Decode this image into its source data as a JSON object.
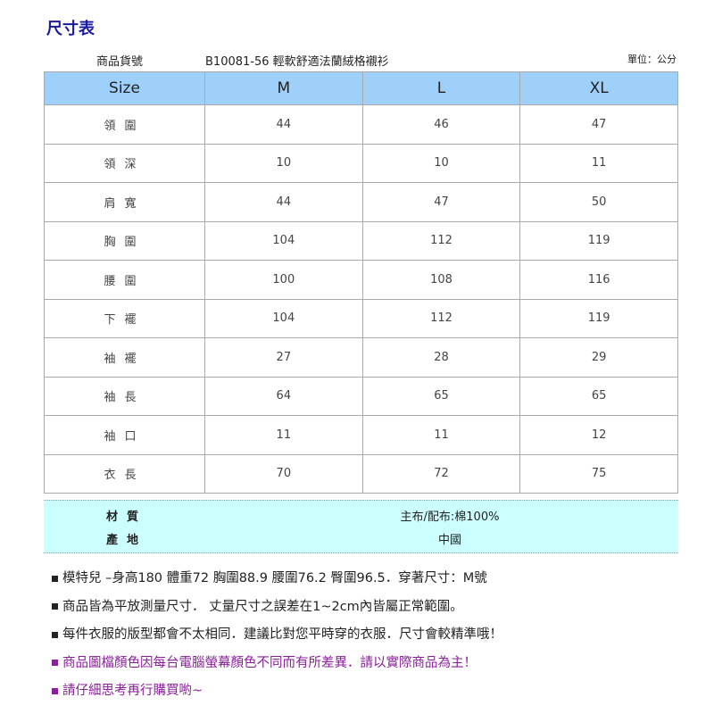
{
  "title": "尺寸表",
  "product_label": "商品貨號",
  "product_name": "B10081-56 輕軟舒適法蘭絨格襯衫",
  "unit": "單位：公分",
  "table": {
    "headers": [
      "Size",
      "M",
      "L",
      "XL"
    ],
    "rows": [
      {
        "label": "領圍",
        "values": [
          "44",
          "46",
          "47"
        ]
      },
      {
        "label": "領深",
        "values": [
          "10",
          "10",
          "11"
        ]
      },
      {
        "label": "肩寬",
        "values": [
          "44",
          "47",
          "50"
        ]
      },
      {
        "label": "胸圍",
        "values": [
          "104",
          "112",
          "119"
        ]
      },
      {
        "label": "腰圍",
        "values": [
          "100",
          "108",
          "116"
        ]
      },
      {
        "label": "下襬",
        "values": [
          "104",
          "112",
          "119"
        ]
      },
      {
        "label": "袖襬",
        "values": [
          "27",
          "28",
          "29"
        ]
      },
      {
        "label": "袖長",
        "values": [
          "64",
          "65",
          "65"
        ]
      },
      {
        "label": "袖口",
        "values": [
          "11",
          "11",
          "12"
        ]
      },
      {
        "label": "衣長",
        "values": [
          "70",
          "72",
          "75"
        ]
      }
    ]
  },
  "material": {
    "label": "材質",
    "value": "主布/配布:棉100%"
  },
  "origin": {
    "label": "產地",
    "value": "中國"
  },
  "notes": [
    {
      "text": "模特兒 –身高180 體重72 胸圍88.9 腰圍76.2 臀圍96.5．穿著尺寸：M號",
      "color": "#222222"
    },
    {
      "text": "商品皆為平放測量尺寸． 丈量尺寸之誤差在1~2cm內皆屬正常範圍。",
      "color": "#222222"
    },
    {
      "text": "每件衣服的版型都會不太相同．建議比對您平時穿的衣服．尺寸會較精準哦！",
      "color": "#222222"
    },
    {
      "text": "商品圖檔顏色因每台電腦螢幕顏色不同而有所差異．請以實際商品為主！",
      "color": "#8a1f9a"
    },
    {
      "text": "請仔細思考再行購買喲~",
      "color": "#8a1f9a"
    }
  ],
  "colors": {
    "header_bg": "#9fd0fa",
    "material_bg": "#ccffff",
    "title": "#1a1aa0"
  }
}
